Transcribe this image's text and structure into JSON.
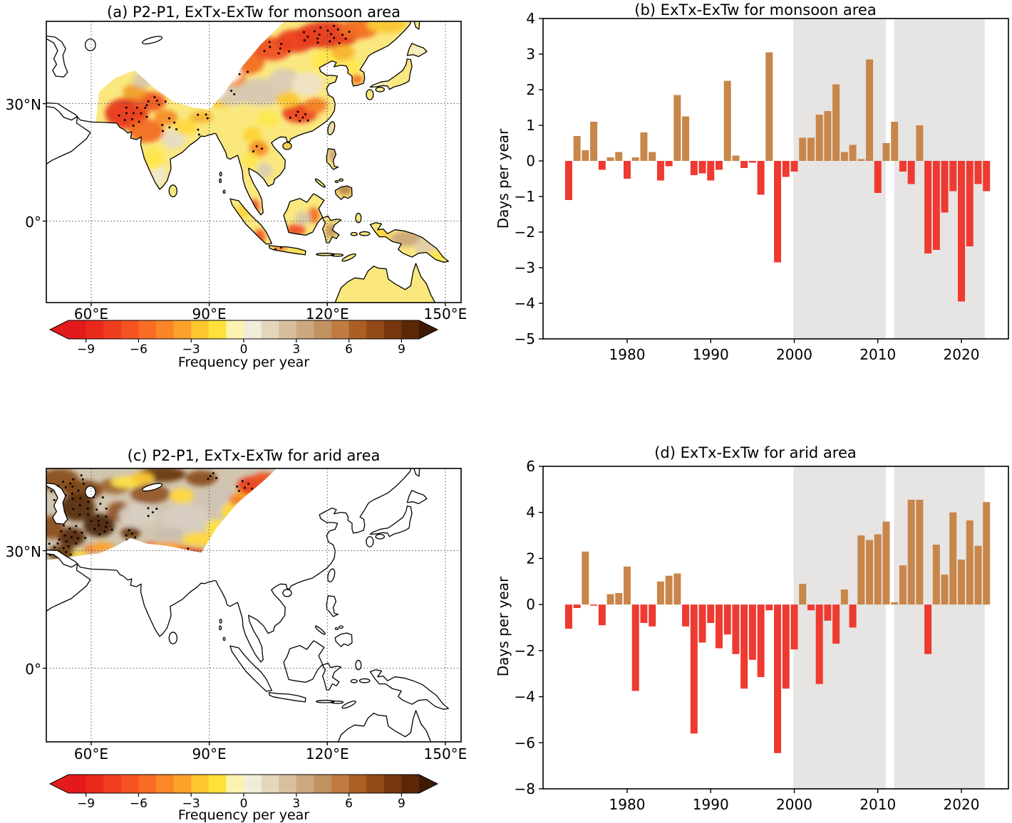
{
  "figure": {
    "background": "#ffffff",
    "axis_color": "#000000",
    "bar_positive_color": "#c8864a",
    "bar_negative_color": "#ee3a31",
    "shade_color": "#e6e5e3",
    "stipple_color": "#000000"
  },
  "colorbar": {
    "label": "Frequency per year",
    "ticks": [
      -9,
      -6,
      -3,
      0,
      3,
      6,
      9
    ],
    "range": [
      -10,
      10
    ],
    "segment_colors": [
      "#e31a1b",
      "#ea291d",
      "#f03d1f",
      "#f55322",
      "#f86c25",
      "#fa8628",
      "#fca12b",
      "#fdc62f",
      "#ffe13a",
      "#fbf3af",
      "#f2ecda",
      "#e5d6bb",
      "#d8bf9c",
      "#cca87e",
      "#c29162",
      "#c07b41",
      "#ab5f24",
      "#934917",
      "#78370e",
      "#5c2706"
    ],
    "arrow_left_color": "#e31a1b",
    "arrow_right_color": "#401b03"
  },
  "chart_data": [
    {
      "id": "a",
      "type": "heatmap",
      "subtype": "geographic-map",
      "title": "(a) P2-P1, ExTx-ExTw for monsoon area",
      "region": "monsoon area",
      "extent": {
        "lon": [
          48.6,
          154.0
        ],
        "lat": [
          -20.8,
          51.0
        ]
      },
      "x_ticks": [
        {
          "value": 60,
          "label": "60°E"
        },
        {
          "value": 90,
          "label": "90°E"
        },
        {
          "value": 120,
          "label": "120°E"
        },
        {
          "value": 150,
          "label": "150°E"
        }
      ],
      "y_ticks": [
        {
          "value": 30,
          "label": "30°N"
        },
        {
          "value": 0,
          "label": "0°"
        }
      ],
      "grid": "dotted",
      "colorbar_label": "Frequency per year",
      "base_color": "#fae87f",
      "blobs": [
        [
          69,
          27.5,
          5.5,
          4,
          "#e73a1e"
        ],
        [
          75,
          30.5,
          4,
          2.5,
          "#ef5a23"
        ],
        [
          74,
          23,
          4.5,
          3,
          "#f26d25"
        ],
        [
          79,
          26.5,
          3,
          2,
          "#f58d28"
        ],
        [
          71,
          33,
          3,
          2,
          "#f0a02a"
        ],
        [
          73,
          36,
          2.5,
          2,
          "#d9c8a8"
        ],
        [
          81,
          21,
          3,
          2.5,
          "#e6dcc6"
        ],
        [
          77,
          12,
          2,
          3,
          "#efe8d2"
        ],
        [
          76,
          16,
          2.5,
          3,
          "#ffe74e"
        ],
        [
          84,
          24,
          3,
          2,
          "#ffd83c"
        ],
        [
          88,
          26.5,
          3,
          1.5,
          "#f7b42e"
        ],
        [
          93,
          31,
          3,
          2,
          "#fbc732"
        ],
        [
          96,
          36,
          3.5,
          2.5,
          "#f58d28"
        ],
        [
          100,
          40.5,
          4,
          3,
          "#f26d25"
        ],
        [
          106,
          44,
          5,
          3,
          "#ee5022"
        ],
        [
          112,
          46,
          5,
          3,
          "#ea3f1f"
        ],
        [
          120,
          47.5,
          8,
          3.5,
          "#e63a1e"
        ],
        [
          128,
          49,
          5,
          2.5,
          "#f26d25"
        ],
        [
          135,
          50,
          5,
          2,
          "#fbc732"
        ],
        [
          96,
          32,
          4,
          2.5,
          "#d9cbb5"
        ],
        [
          103,
          33,
          6,
          3.5,
          "#d6c8b2"
        ],
        [
          109,
          36,
          4,
          3,
          "#d9ccb6"
        ],
        [
          115,
          35,
          4,
          3,
          "#efe3c8"
        ],
        [
          120,
          41,
          4,
          3,
          "#ffe74e"
        ],
        [
          124,
          43,
          3,
          2,
          "#f7b42e"
        ],
        [
          113,
          27.5,
          4.5,
          2.5,
          "#ea4520"
        ],
        [
          117,
          29.5,
          3,
          2,
          "#f58027"
        ],
        [
          110,
          31,
          3,
          2,
          "#fbc732"
        ],
        [
          105,
          26,
          3,
          2,
          "#ffe74e"
        ],
        [
          101,
          22,
          2.5,
          2,
          "#fcd435"
        ],
        [
          102.5,
          18.5,
          2.5,
          2,
          "#f58d28"
        ],
        [
          104,
          13,
          2,
          2,
          "#dccdb2"
        ],
        [
          100.5,
          15.5,
          2,
          2,
          "#ffe74e"
        ],
        [
          127.5,
          36.2,
          1.5,
          1.2,
          "#f26d25"
        ],
        [
          126.5,
          39.5,
          2,
          2,
          "#ffe74e"
        ],
        [
          133,
          34.8,
          3,
          1,
          "#f9f0c8"
        ],
        [
          139,
          36.8,
          2,
          1.8,
          "#fae87f"
        ],
        [
          143,
          43.5,
          2.5,
          1.5,
          "#f9f0c8"
        ],
        [
          110,
          19.2,
          1.2,
          1,
          "#fbc732"
        ],
        [
          120.8,
          23.8,
          0.8,
          1.5,
          "#e2d4b6"
        ],
        [
          101.5,
          3.6,
          1.2,
          2,
          "#ec4a21"
        ],
        [
          98.5,
          2.5,
          1.5,
          2,
          "#fcd435"
        ],
        [
          102.8,
          -4,
          1.5,
          2,
          "#ef5a23"
        ],
        [
          112,
          -2.3,
          2.5,
          1.5,
          "#ee5022"
        ],
        [
          116.5,
          1.5,
          1.5,
          2,
          "#f26d25"
        ],
        [
          113.8,
          0.8,
          2,
          1.8,
          "#d9c8a8"
        ],
        [
          108,
          -7,
          2,
          0.8,
          "#f58027"
        ],
        [
          112.5,
          -7.6,
          2,
          0.7,
          "#fcd435"
        ],
        [
          121.5,
          17,
          1.3,
          2,
          "#cda87c"
        ],
        [
          124.5,
          8,
          1.8,
          1.5,
          "#b9854e"
        ],
        [
          122.8,
          11.5,
          1.2,
          1.5,
          "#c99a68"
        ],
        [
          121,
          -2.5,
          1.5,
          2,
          "#c79862"
        ],
        [
          134,
          -3,
          2,
          1.5,
          "#fcd435"
        ],
        [
          140,
          -4.5,
          4,
          2,
          "#cda87c"
        ],
        [
          145,
          -6.5,
          3,
          2,
          "#e0ceaa"
        ],
        [
          148,
          -9,
          3,
          1.5,
          "#ffe74e"
        ]
      ],
      "white_patches": [
        [
          86,
          42,
          8,
          5
        ],
        [
          81,
          36.5,
          4,
          3
        ],
        [
          90,
          33.5,
          4,
          2.5
        ],
        [
          93,
          38,
          5,
          3
        ],
        [
          95,
          46,
          5,
          3
        ]
      ],
      "stipple_clusters": [
        [
          71,
          27,
          4,
          3,
          12
        ],
        [
          76,
          30.5,
          3,
          1.5,
          6
        ],
        [
          80,
          24.5,
          3,
          2,
          6
        ],
        [
          120,
          47.5,
          7,
          2.5,
          18
        ],
        [
          107,
          44,
          4,
          2,
          7
        ],
        [
          97,
          38.5,
          3,
          2,
          5
        ],
        [
          113,
          26.5,
          3,
          1.5,
          7
        ],
        [
          88.5,
          27,
          2,
          1,
          3
        ],
        [
          102,
          18.5,
          1.5,
          1.5,
          3
        ],
        [
          95,
          33,
          2,
          1,
          3
        ],
        [
          87,
          22.5,
          1.5,
          1,
          2
        ],
        [
          108,
          -7,
          1.5,
          0.5,
          2
        ],
        [
          101,
          3,
          0.8,
          1,
          2
        ]
      ]
    },
    {
      "id": "b",
      "type": "bar",
      "title": "(b) ExTx-ExTw for monsoon area",
      "ylabel": "Days per year",
      "ylim": [
        -5,
        4
      ],
      "ytick_step": 1,
      "xticks": [
        1980,
        1990,
        2000,
        2010,
        2020
      ],
      "shaded_periods": [
        [
          1999.9,
          2010.95
        ],
        [
          2011.95,
          2022.8
        ]
      ],
      "categories": [
        1973,
        1974,
        1975,
        1976,
        1977,
        1978,
        1979,
        1980,
        1981,
        1982,
        1983,
        1984,
        1985,
        1986,
        1987,
        1988,
        1989,
        1990,
        1991,
        1992,
        1993,
        1994,
        1995,
        1996,
        1997,
        1998,
        1999,
        2000,
        2001,
        2002,
        2003,
        2004,
        2005,
        2006,
        2007,
        2008,
        2009,
        2010,
        2011,
        2012,
        2013,
        2014,
        2015,
        2016,
        2017,
        2018,
        2019,
        2020,
        2021,
        2022,
        2023
      ],
      "values": [
        -1.1,
        0.7,
        0.3,
        1.1,
        -0.25,
        0.1,
        0.25,
        -0.5,
        0.1,
        0.8,
        0.25,
        -0.55,
        -0.15,
        1.85,
        1.25,
        -0.4,
        -0.35,
        -0.55,
        -0.25,
        2.25,
        0.15,
        -0.2,
        -0.05,
        -0.95,
        3.05,
        -2.85,
        -0.45,
        -0.3,
        0.65,
        0.65,
        1.3,
        1.4,
        2.15,
        0.25,
        0.45,
        0.05,
        2.85,
        -0.9,
        0.5,
        1.1,
        -0.3,
        -0.65,
        1.0,
        -2.6,
        -2.5,
        -1.45,
        -0.85,
        -3.95,
        -2.4,
        -0.65,
        -0.85
      ]
    },
    {
      "id": "c",
      "type": "heatmap",
      "subtype": "geographic-map",
      "title": "(c) P2-P1, ExTx-ExTw for arid area",
      "region": "arid area",
      "extent": {
        "lon": [
          48.6,
          154.0
        ],
        "lat": [
          -18.8,
          51.0
        ]
      },
      "x_ticks": [
        {
          "value": 60,
          "label": "60°E"
        },
        {
          "value": 90,
          "label": "90°E"
        },
        {
          "value": 120,
          "label": "120°E"
        },
        {
          "value": 150,
          "label": "150°E"
        }
      ],
      "y_ticks": [
        {
          "value": 30,
          "label": "30°N"
        },
        {
          "value": 0,
          "label": "0°"
        }
      ],
      "grid": "dotted",
      "colorbar_label": "Frequency per year",
      "base_color": "#d2c5b0",
      "blobs": [
        [
          52,
          48,
          5,
          3,
          "#8a5020"
        ],
        [
          58,
          45.5,
          5,
          2.5,
          "#7a4516"
        ],
        [
          66,
          46.5,
          4,
          2,
          "#a06a32"
        ],
        [
          56.5,
          41,
          4.5,
          3.5,
          "#5a2f0c"
        ],
        [
          62,
          36.5,
          4,
          3,
          "#4e2708"
        ],
        [
          55,
          33.5,
          3.5,
          2.5,
          "#5a2d08"
        ],
        [
          52.5,
          29.5,
          3.5,
          2,
          "#6b3a10"
        ],
        [
          50,
          36,
          3,
          3,
          "#8a5020"
        ],
        [
          70,
          34.5,
          2.5,
          1.5,
          "#6b3a10"
        ],
        [
          67,
          40,
          3,
          2.5,
          "#93592a"
        ],
        [
          75,
          44.5,
          5,
          2.5,
          "#93592a"
        ],
        [
          78,
          49.5,
          6,
          2,
          "#6b3a10"
        ],
        [
          88,
          48.5,
          4,
          2,
          "#8a5020"
        ],
        [
          84,
          38,
          6,
          4,
          "#d7cfc2"
        ],
        [
          72,
          39,
          5,
          3,
          "#d7cfc2"
        ],
        [
          93,
          43,
          4,
          3,
          "#cdc4b6"
        ],
        [
          80,
          34,
          4,
          2,
          "#cabfae"
        ],
        [
          69,
          47.5,
          4,
          1.5,
          "#ffe14a"
        ],
        [
          73,
          48.5,
          3,
          1.5,
          "#fdc62f"
        ],
        [
          83,
          44,
          3,
          2,
          "#ffd83e"
        ],
        [
          88,
          33,
          5,
          1.8,
          "#ffd83e"
        ],
        [
          92,
          36,
          3,
          2,
          "#ffe04a"
        ],
        [
          96,
          40,
          3,
          2.5,
          "#ffd83e"
        ],
        [
          100,
          44,
          3.5,
          2.5,
          "#fdc62f"
        ],
        [
          101,
          46.5,
          4,
          2.5,
          "#e8401f"
        ],
        [
          104,
          48.5,
          3,
          1.5,
          "#ef5523"
        ],
        [
          97,
          43,
          2,
          1.5,
          "#f58127"
        ],
        [
          79,
          31,
          5,
          1.2,
          "#fca12b"
        ],
        [
          84,
          30,
          2.5,
          1,
          "#ef5523"
        ],
        [
          87,
          29.8,
          2,
          0.8,
          "#e8401f"
        ],
        [
          75,
          31.5,
          1.5,
          0.7,
          "#f26a25"
        ],
        [
          60,
          30.5,
          2,
          1,
          "#f58127"
        ],
        [
          63,
          31,
          3,
          1.2,
          "#fca12b"
        ],
        [
          57,
          29,
          2,
          1,
          "#ffd83e"
        ]
      ],
      "white_patches": [],
      "stipple_clusters": [
        [
          53,
          45,
          4,
          3,
          14
        ],
        [
          60,
          41,
          5,
          4,
          16
        ],
        [
          55,
          34,
          4,
          3,
          14
        ],
        [
          52,
          29.5,
          3,
          1.5,
          8
        ],
        [
          63,
          36,
          3,
          2,
          8
        ],
        [
          70,
          34,
          2,
          1.5,
          5
        ],
        [
          75,
          40,
          2,
          1.5,
          4
        ],
        [
          99,
          46.5,
          3,
          1.5,
          6
        ],
        [
          85,
          30,
          2,
          0.7,
          4
        ],
        [
          91,
          49,
          2,
          1,
          4
        ],
        [
          57,
          48,
          3,
          1.5,
          5
        ],
        [
          50,
          31,
          2,
          1.5,
          4
        ]
      ]
    },
    {
      "id": "d",
      "type": "bar",
      "title": "(d) ExTx-ExTw for arid area",
      "ylabel": "Days per year",
      "ylim": [
        -8,
        6
      ],
      "ytick_step": 2,
      "xticks": [
        1980,
        1990,
        2000,
        2010,
        2020
      ],
      "shaded_periods": [
        [
          1999.9,
          2010.95
        ],
        [
          2011.95,
          2022.8
        ]
      ],
      "categories": [
        1973,
        1974,
        1975,
        1976,
        1977,
        1978,
        1979,
        1980,
        1981,
        1982,
        1983,
        1984,
        1985,
        1986,
        1987,
        1988,
        1989,
        1990,
        1991,
        1992,
        1993,
        1994,
        1995,
        1996,
        1997,
        1998,
        1999,
        2000,
        2001,
        2002,
        2003,
        2004,
        2005,
        2006,
        2007,
        2008,
        2009,
        2010,
        2011,
        2012,
        2013,
        2014,
        2015,
        2016,
        2017,
        2018,
        2019,
        2020,
        2021,
        2022,
        2023
      ],
      "values": [
        -1.05,
        -0.15,
        2.3,
        -0.05,
        -0.9,
        0.45,
        0.5,
        1.65,
        -3.75,
        -0.8,
        -0.95,
        1.0,
        1.25,
        1.35,
        -0.95,
        -5.6,
        -1.65,
        -0.8,
        -1.9,
        -1.3,
        -2.15,
        -3.65,
        -2.4,
        -3.15,
        -0.25,
        -6.45,
        -3.65,
        -1.95,
        0.9,
        -0.25,
        -3.45,
        -0.7,
        -1.7,
        0.65,
        -1.0,
        3.0,
        2.8,
        3.05,
        3.6,
        0.1,
        1.7,
        4.55,
        4.55,
        -2.15,
        2.6,
        1.3,
        4.0,
        1.95,
        3.65,
        2.55,
        4.45
      ]
    }
  ]
}
